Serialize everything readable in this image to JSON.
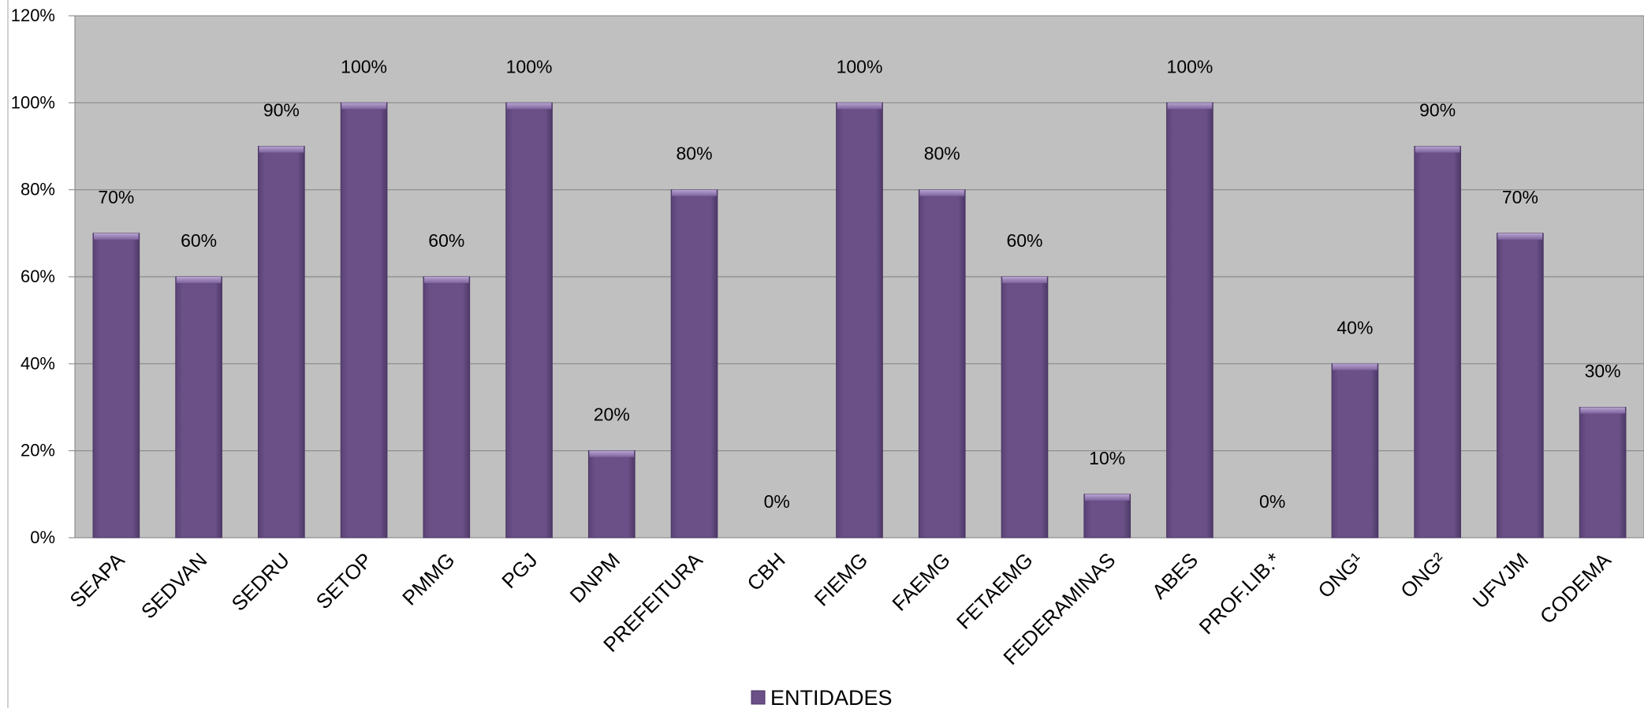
{
  "chart_data": {
    "type": "bar",
    "categories": [
      "SEAPA",
      "SEDVAN",
      "SEDRU",
      "SETOP",
      "PMMG",
      "PGJ",
      "DNPM",
      "PREFEITURA",
      "CBH",
      "FIEMG",
      "FAEMG",
      "FETAEMG",
      "FEDERAMINAS",
      "ABES",
      "PROF.LIB.*",
      "ONG¹",
      "ONG²",
      "UFVJM",
      "CODEMA"
    ],
    "series": [
      {
        "name": "ENTIDADES",
        "values": [
          70,
          60,
          90,
          100,
          60,
          100,
          20,
          80,
          0,
          100,
          80,
          60,
          10,
          100,
          0,
          40,
          90,
          70,
          30
        ]
      }
    ],
    "data_labels": [
      "70%",
      "60%",
      "90%",
      "100%",
      "60%",
      "100%",
      "20%",
      "80%",
      "0%",
      "100%",
      "80%",
      "60%",
      "10%",
      "100%",
      "0%",
      "40%",
      "90%",
      "70%",
      "30%"
    ],
    "y_ticks": [
      "0%",
      "20%",
      "40%",
      "60%",
      "80%",
      "100%",
      "120%"
    ],
    "ylim": [
      0,
      120
    ],
    "grid": true,
    "legend_position": "bottom",
    "colors": {
      "bar": "#6a5087",
      "plot_background": "#c0c0c0",
      "gridline": "#8a8a8a",
      "axis": "#808080"
    }
  }
}
